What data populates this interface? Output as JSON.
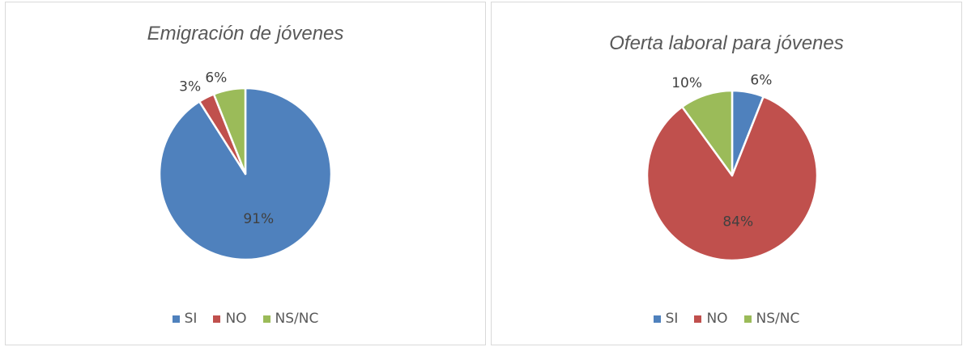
{
  "chart_data": [
    {
      "type": "pie",
      "title": "Emigración de jóvenes",
      "categories": [
        "SI",
        "NO",
        "NS/NC"
      ],
      "values": [
        91,
        3,
        6
      ],
      "data_labels": [
        "91%",
        "3%",
        "6%"
      ],
      "colors": [
        "#4f81bd",
        "#c0504d",
        "#9bbb59"
      ],
      "legend": [
        "SI",
        "NO",
        "NS/NC"
      ],
      "legend_position": "bottom"
    },
    {
      "type": "pie",
      "title": "Oferta laboral para jóvenes",
      "categories": [
        "SI",
        "NO",
        "NS/NC"
      ],
      "values": [
        6,
        84,
        10
      ],
      "data_labels": [
        "6%",
        "84%",
        "10%"
      ],
      "colors": [
        "#4f81bd",
        "#c0504d",
        "#9bbb59"
      ],
      "legend": [
        "SI",
        "NO",
        "NS/NC"
      ],
      "legend_position": "bottom"
    }
  ]
}
